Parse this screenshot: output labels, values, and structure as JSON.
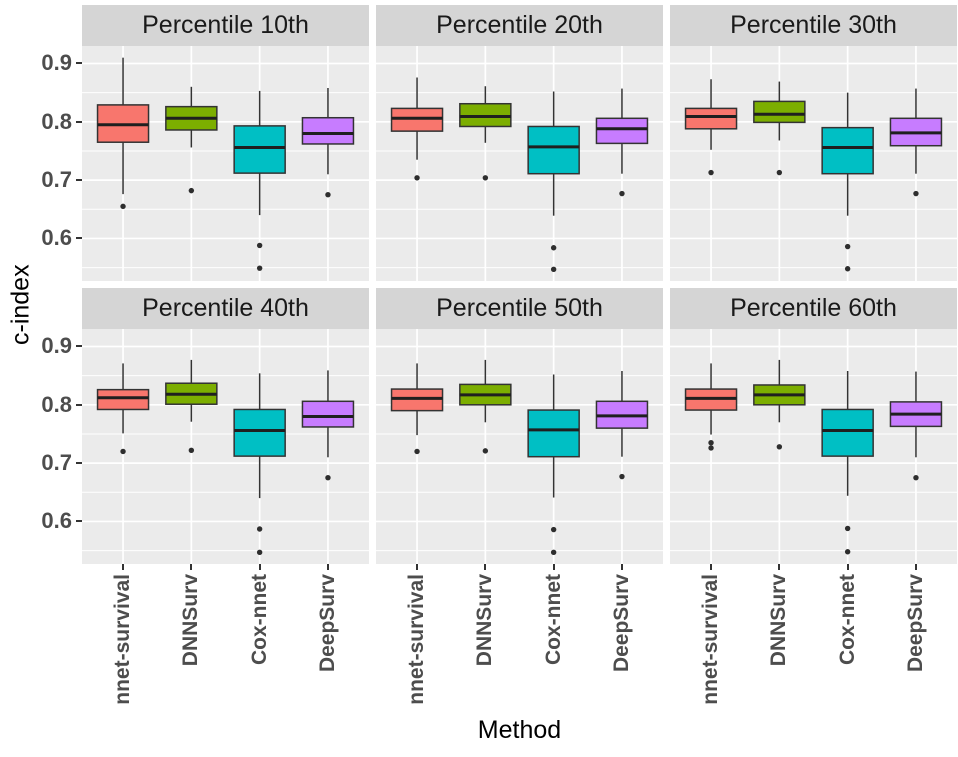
{
  "figure": {
    "background": "#FFFFFF",
    "panel_bg": "#EBEBEB",
    "strip_bg": "#D5D5D5",
    "grid_color": "#FFFFFF",
    "axis_text_color": "#4D4D4D",
    "box_stroke": "#333333",
    "median_color": "#1F1F1F",
    "outlier_color": "#2E2E2E"
  },
  "chart_data": {
    "type": "boxplot",
    "layout": "faceted 2 rows x 3 cols, shared axes",
    "xlabel": "Method",
    "ylabel": "c-index",
    "categories": [
      "nnet-survival",
      "DNNSurv",
      "Cox-nnet",
      "DeepSurv"
    ],
    "colors": [
      "#F8766D",
      "#7CAE00",
      "#00BFC4",
      "#C77CFF"
    ],
    "y_ticks": [
      0.9,
      0.8,
      0.7,
      0.6
    ],
    "y_minor_ticks": [
      0.85,
      0.75,
      0.65,
      0.55
    ],
    "ylim": [
      0.527,
      0.93
    ],
    "grid": "on",
    "facets": [
      {
        "title": "Percentile 10th",
        "boxes": [
          {
            "method": "nnet-survival",
            "whisker_low": 0.676,
            "q1": 0.765,
            "median": 0.795,
            "q3": 0.829,
            "whisker_high": 0.91,
            "outliers": [
              0.655
            ]
          },
          {
            "method": "DNNSurv",
            "whisker_low": 0.756,
            "q1": 0.786,
            "median": 0.806,
            "q3": 0.826,
            "whisker_high": 0.86,
            "outliers": [
              0.682
            ]
          },
          {
            "method": "Cox-nnet",
            "whisker_low": 0.64,
            "q1": 0.712,
            "median": 0.756,
            "q3": 0.793,
            "whisker_high": 0.853,
            "outliers": [
              0.588,
              0.549
            ]
          },
          {
            "method": "DeepSurv",
            "whisker_low": 0.71,
            "q1": 0.762,
            "median": 0.78,
            "q3": 0.807,
            "whisker_high": 0.858,
            "outliers": [
              0.675
            ]
          }
        ]
      },
      {
        "title": "Percentile 20th",
        "boxes": [
          {
            "method": "nnet-survival",
            "whisker_low": 0.735,
            "q1": 0.784,
            "median": 0.806,
            "q3": 0.823,
            "whisker_high": 0.876,
            "outliers": [
              0.704
            ]
          },
          {
            "method": "DNNSurv",
            "whisker_low": 0.764,
            "q1": 0.792,
            "median": 0.809,
            "q3": 0.831,
            "whisker_high": 0.861,
            "outliers": [
              0.704
            ]
          },
          {
            "method": "Cox-nnet",
            "whisker_low": 0.639,
            "q1": 0.711,
            "median": 0.757,
            "q3": 0.792,
            "whisker_high": 0.852,
            "outliers": [
              0.584,
              0.547
            ]
          },
          {
            "method": "DeepSurv",
            "whisker_low": 0.711,
            "q1": 0.763,
            "median": 0.788,
            "q3": 0.806,
            "whisker_high": 0.857,
            "outliers": [
              0.677
            ]
          }
        ]
      },
      {
        "title": "Percentile 30th",
        "boxes": [
          {
            "method": "nnet-survival",
            "whisker_low": 0.752,
            "q1": 0.788,
            "median": 0.809,
            "q3": 0.823,
            "whisker_high": 0.873,
            "outliers": [
              0.713
            ]
          },
          {
            "method": "DNNSurv",
            "whisker_low": 0.768,
            "q1": 0.799,
            "median": 0.813,
            "q3": 0.835,
            "whisker_high": 0.869,
            "outliers": [
              0.713
            ]
          },
          {
            "method": "Cox-nnet",
            "whisker_low": 0.639,
            "q1": 0.711,
            "median": 0.756,
            "q3": 0.79,
            "whisker_high": 0.85,
            "outliers": [
              0.586,
              0.548
            ]
          },
          {
            "method": "DeepSurv",
            "whisker_low": 0.711,
            "q1": 0.759,
            "median": 0.781,
            "q3": 0.806,
            "whisker_high": 0.857,
            "outliers": [
              0.677
            ]
          }
        ]
      },
      {
        "title": "Percentile 40th",
        "boxes": [
          {
            "method": "nnet-survival",
            "whisker_low": 0.751,
            "q1": 0.792,
            "median": 0.812,
            "q3": 0.826,
            "whisker_high": 0.871,
            "outliers": [
              0.72
            ]
          },
          {
            "method": "DNNSurv",
            "whisker_low": 0.771,
            "q1": 0.801,
            "median": 0.818,
            "q3": 0.837,
            "whisker_high": 0.877,
            "outliers": [
              0.722
            ]
          },
          {
            "method": "Cox-nnet",
            "whisker_low": 0.64,
            "q1": 0.712,
            "median": 0.756,
            "q3": 0.792,
            "whisker_high": 0.854,
            "outliers": [
              0.587,
              0.547
            ]
          },
          {
            "method": "DeepSurv",
            "whisker_low": 0.71,
            "q1": 0.762,
            "median": 0.78,
            "q3": 0.806,
            "whisker_high": 0.859,
            "outliers": [
              0.675
            ]
          }
        ]
      },
      {
        "title": "Percentile 50th",
        "boxes": [
          {
            "method": "nnet-survival",
            "whisker_low": 0.748,
            "q1": 0.79,
            "median": 0.811,
            "q3": 0.827,
            "whisker_high": 0.871,
            "outliers": [
              0.72
            ]
          },
          {
            "method": "DNNSurv",
            "whisker_low": 0.77,
            "q1": 0.8,
            "median": 0.817,
            "q3": 0.835,
            "whisker_high": 0.877,
            "outliers": [
              0.721
            ]
          },
          {
            "method": "Cox-nnet",
            "whisker_low": 0.641,
            "q1": 0.711,
            "median": 0.757,
            "q3": 0.791,
            "whisker_high": 0.852,
            "outliers": [
              0.586,
              0.547
            ]
          },
          {
            "method": "DeepSurv",
            "whisker_low": 0.711,
            "q1": 0.76,
            "median": 0.781,
            "q3": 0.806,
            "whisker_high": 0.858,
            "outliers": [
              0.677
            ]
          }
        ]
      },
      {
        "title": "Percentile 60th",
        "boxes": [
          {
            "method": "nnet-survival",
            "whisker_low": 0.749,
            "q1": 0.791,
            "median": 0.811,
            "q3": 0.827,
            "whisker_high": 0.871,
            "outliers": [
              0.735,
              0.726
            ]
          },
          {
            "method": "DNNSurv",
            "whisker_low": 0.77,
            "q1": 0.8,
            "median": 0.817,
            "q3": 0.834,
            "whisker_high": 0.877,
            "outliers": [
              0.728
            ]
          },
          {
            "method": "Cox-nnet",
            "whisker_low": 0.644,
            "q1": 0.712,
            "median": 0.756,
            "q3": 0.792,
            "whisker_high": 0.858,
            "outliers": [
              0.588,
              0.548
            ]
          },
          {
            "method": "DeepSurv",
            "whisker_low": 0.71,
            "q1": 0.763,
            "median": 0.784,
            "q3": 0.805,
            "whisker_high": 0.857,
            "outliers": [
              0.675
            ]
          }
        ]
      }
    ]
  }
}
